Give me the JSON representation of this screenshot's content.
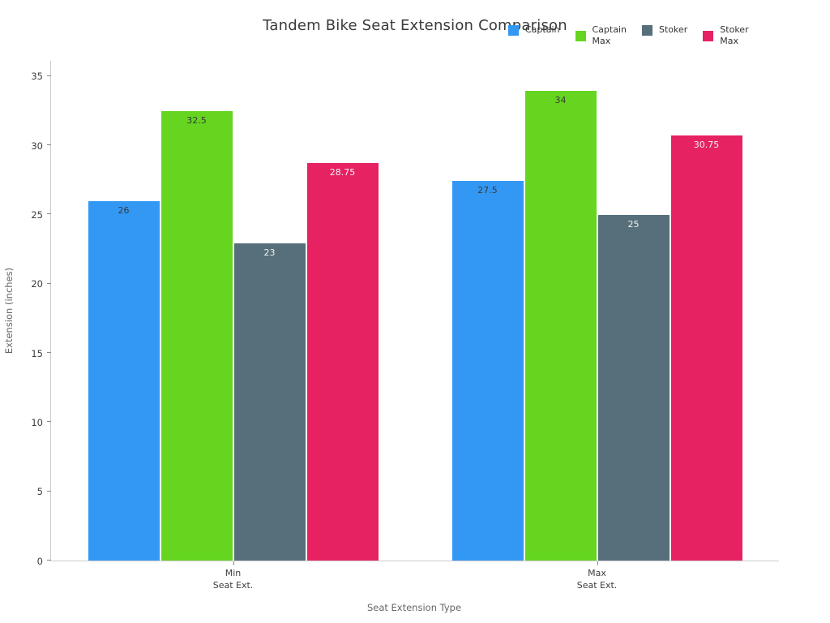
{
  "title": "Tandem Bike Seat Extension Comparison",
  "axis_colors": {
    "spine": "#cccccc",
    "tick_mark": "#888888",
    "tick_label": "#3d3d3d",
    "axis_label": "#666666",
    "title": "#3a3a3a"
  },
  "chart_data": {
    "type": "bar",
    "title": "Tandem Bike Seat Extension Comparison",
    "xlabel": "Seat Extension Type",
    "ylabel": "Extension (inches)",
    "categories": [
      "Min\nSeat Ext.",
      "Max\nSeat Ext."
    ],
    "series": [
      {
        "name": "Captain",
        "legend_label": "Captain",
        "color": "#3398f4",
        "value_label_color": "#3a3a3a",
        "values": [
          26,
          27.5
        ]
      },
      {
        "name": "Captain Max",
        "legend_label": "Captain\nMax",
        "color": "#65d51f",
        "value_label_color": "#3a3a3a",
        "values": [
          32.5,
          34
        ]
      },
      {
        "name": "Stoker",
        "legend_label": "Stoker",
        "color": "#566f7b",
        "value_label_color": "#f2f2f2",
        "values": [
          23,
          25
        ]
      },
      {
        "name": "Stoker Max",
        "legend_label": "Stoker\nMax",
        "color": "#e62263",
        "value_label_color": "#f2f2f2",
        "values": [
          28.75,
          30.75
        ]
      }
    ],
    "ylim": [
      0,
      36.1
    ],
    "yticks": [
      0,
      5,
      10,
      15,
      20,
      25,
      30,
      35
    ],
    "grid": false,
    "legend_position": "top-right"
  }
}
